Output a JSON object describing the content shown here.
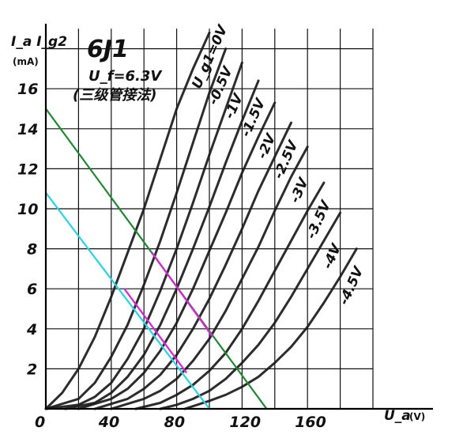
{
  "chart_data": {
    "type": "line",
    "title": "6J1",
    "subtitle": "U_f=6.3V",
    "note": "(三级管接法)",
    "xlabel": "U_a",
    "xunit": "(V)",
    "ylabel": "I_a I_g2",
    "yunit": "(mA)",
    "xlim": [
      0,
      200
    ],
    "ylim": [
      0,
      19
    ],
    "x_ticks": [
      "0",
      "40",
      "80",
      "120",
      "160"
    ],
    "y_ticks": [
      "2",
      "4",
      "6",
      "8",
      "10",
      "12",
      "14",
      "16"
    ],
    "series_label_prefix": "U_g1=",
    "series": [
      {
        "name": "0V",
        "x": [
          0,
          10,
          20,
          30,
          40,
          50,
          60,
          70,
          80,
          90,
          100
        ],
        "y": [
          0,
          0.8,
          2.0,
          3.6,
          5.6,
          7.8,
          10.0,
          12.5,
          15.0,
          17.0,
          18.8
        ]
      },
      {
        "name": "-0.5V",
        "x": [
          0,
          20,
          30,
          40,
          50,
          60,
          70,
          80,
          90,
          100,
          110
        ],
        "y": [
          0,
          0.5,
          1.3,
          2.6,
          4.2,
          6.2,
          8.4,
          10.8,
          13.3,
          15.8,
          18.0
        ]
      },
      {
        "name": "-1V",
        "x": [
          0,
          20,
          30,
          40,
          50,
          60,
          70,
          80,
          90,
          100,
          110,
          120
        ],
        "y": [
          0,
          0.2,
          0.6,
          1.3,
          2.5,
          4.0,
          5.9,
          8.0,
          10.3,
          12.7,
          15.0,
          17.3
        ]
      },
      {
        "name": "-1.5V",
        "x": [
          12,
          30,
          40,
          50,
          60,
          70,
          80,
          90,
          100,
          110,
          120,
          130
        ],
        "y": [
          0,
          0.3,
          0.8,
          1.6,
          2.7,
          4.2,
          6.0,
          8.0,
          10.1,
          12.3,
          14.4,
          16.4
        ]
      },
      {
        "name": "-2V",
        "x": [
          20,
          40,
          50,
          60,
          70,
          80,
          90,
          100,
          110,
          120,
          130,
          140
        ],
        "y": [
          0,
          0.5,
          1.0,
          1.8,
          2.9,
          4.3,
          6.0,
          7.9,
          9.8,
          11.8,
          13.6,
          15.3
        ]
      },
      {
        "name": "-2.5V",
        "x": [
          30,
          50,
          60,
          70,
          80,
          90,
          100,
          110,
          120,
          130,
          140,
          150
        ],
        "y": [
          0,
          0.5,
          1.0,
          1.7,
          2.7,
          4.0,
          5.5,
          7.2,
          9.0,
          10.9,
          12.6,
          14.3
        ]
      },
      {
        "name": "-3V",
        "x": [
          40,
          60,
          70,
          80,
          90,
          100,
          110,
          120,
          130,
          140,
          150,
          160
        ],
        "y": [
          0,
          0.5,
          0.9,
          1.5,
          2.4,
          3.5,
          4.9,
          6.5,
          8.1,
          9.9,
          11.6,
          13.1
        ]
      },
      {
        "name": "-3.5V",
        "x": [
          55,
          70,
          80,
          90,
          100,
          110,
          120,
          130,
          140,
          150,
          160,
          170
        ],
        "y": [
          0,
          0.3,
          0.7,
          1.2,
          1.9,
          2.8,
          4.0,
          5.4,
          6.9,
          8.4,
          9.9,
          11.3
        ]
      },
      {
        "name": "-4V",
        "x": [
          70,
          80,
          90,
          100,
          110,
          120,
          130,
          140,
          150,
          160,
          170,
          180
        ],
        "y": [
          0,
          0.2,
          0.5,
          0.9,
          1.5,
          2.3,
          3.2,
          4.3,
          5.6,
          7.0,
          8.4,
          9.8
        ]
      },
      {
        "name": "-4.5V",
        "x": [
          85,
          100,
          110,
          120,
          130,
          140,
          150,
          160,
          170,
          180,
          190
        ],
        "y": [
          0,
          0.4,
          0.7,
          1.1,
          1.6,
          2.3,
          3.1,
          4.1,
          5.3,
          6.6,
          8.0
        ]
      }
    ],
    "load_lines": [
      {
        "color": "#1a8a2e",
        "x": [
          0,
          135
        ],
        "y": [
          15,
          0
        ]
      },
      {
        "color": "#22d5e8",
        "x": [
          0,
          100
        ],
        "y": [
          10.8,
          0
        ]
      }
    ],
    "highlights": [
      {
        "color": "#e020d8",
        "x": [
          65,
          102
        ],
        "y": [
          7.8,
          3.6
        ]
      },
      {
        "color": "#e020d8",
        "x": [
          48,
          86
        ],
        "y": [
          6.0,
          1.8
        ]
      }
    ],
    "grid": true
  }
}
